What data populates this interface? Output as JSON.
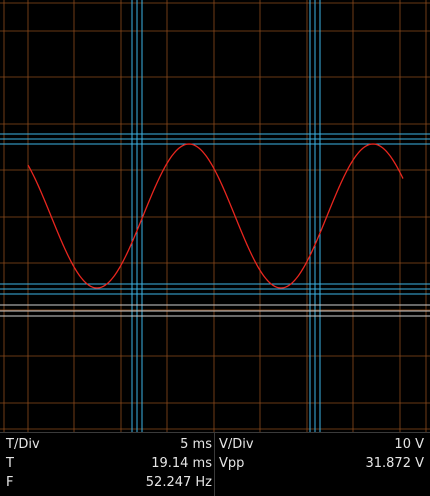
{
  "colors": {
    "background": "#000000",
    "grid": "#8b4a1c",
    "cursor": "#3cb4e6",
    "trigger_line": "#cfcfcf",
    "trace": "#e8261e",
    "text": "#e6e6e6"
  },
  "readout": {
    "tdiv_label": "T/Div",
    "tdiv_value": "5 ms",
    "vdiv_label": "V/Div",
    "vdiv_value": "10 V",
    "period_label": "T",
    "period_value": "19.14 ms",
    "vpp_label": "Vpp",
    "vpp_value": "31.872 V",
    "freq_label": "F",
    "freq_value": "52.247 Hz"
  },
  "waveform": {
    "shape": "sine",
    "frequency_hz": 52.247,
    "peak_to_peak_v": 31.872,
    "time_per_div_ms": 5,
    "volts_per_div": 10
  }
}
